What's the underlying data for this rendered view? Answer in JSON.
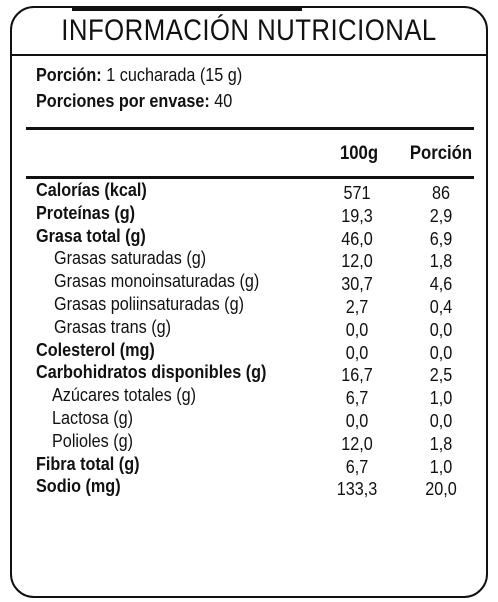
{
  "title": "INFORMACIÓN NUTRICIONAL",
  "serving": {
    "portion_label": "Porción:",
    "portion_value": "1 cucharada (15 g)",
    "servings_label": "Porciones por envase:",
    "servings_value": "40"
  },
  "columns": {
    "per_100g": "100g",
    "per_portion": "Porción"
  },
  "rows": [
    {
      "label": "Calorías (kcal)",
      "v100": "571",
      "vport": "86"
    },
    {
      "label": "Proteínas (g)",
      "v100": "19,3",
      "vport": "2,9"
    },
    {
      "label": "Grasa total (g)",
      "v100": "46,0",
      "vport": "6,9"
    },
    {
      "label": "Grasas saturadas (g)",
      "v100": "12,0",
      "vport": "1,8"
    },
    {
      "label": "Grasas monoinsaturadas (g)",
      "v100": "30,7",
      "vport": "4,6"
    },
    {
      "label": "Grasas poliinsaturadas (g)",
      "v100": "2,7",
      "vport": "0,4"
    },
    {
      "label": "Grasas trans (g)",
      "v100": "0,0",
      "vport": "0,0"
    },
    {
      "label": "Colesterol (mg)",
      "v100": "0,0",
      "vport": "0,0"
    },
    {
      "label": "Carbohidratos disponibles (g)",
      "v100": "16,7",
      "vport": "2,5"
    },
    {
      "label": "Azúcares totales (g)",
      "v100": "6,7",
      "vport": "1,0"
    },
    {
      "label": "Lactosa (g)",
      "v100": "0,0",
      "vport": "0,0"
    },
    {
      "label": "Polioles (g)",
      "v100": "12,0",
      "vport": "1,8"
    },
    {
      "label": "Fibra total (g)",
      "v100": "6,7",
      "vport": "1,0"
    },
    {
      "label": "Sodio (mg)",
      "v100": "133,3",
      "vport": "20,0"
    }
  ]
}
